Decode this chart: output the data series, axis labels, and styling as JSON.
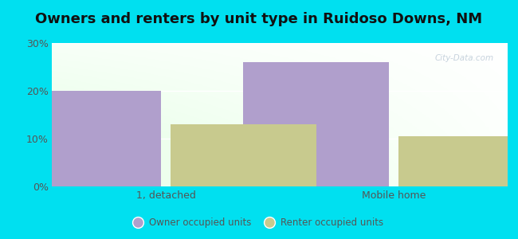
{
  "title": "Owners and renters by unit type in Ruidoso Downs, NM",
  "categories": [
    "1, detached",
    "Mobile home"
  ],
  "owner_values": [
    20.0,
    26.0
  ],
  "renter_values": [
    13.0,
    10.5
  ],
  "owner_color": "#b09fcc",
  "renter_color": "#c8ca8e",
  "owner_label": "Owner occupied units",
  "renter_label": "Renter occupied units",
  "ylim": [
    0,
    30
  ],
  "yticks": [
    0,
    10,
    20,
    30
  ],
  "ytick_labels": [
    "0%",
    "10%",
    "20%",
    "30%"
  ],
  "background_color": "#00e0f0",
  "title_fontsize": 13,
  "bar_width": 0.32,
  "x_positions": [
    0.25,
    0.75
  ],
  "xlim": [
    0,
    1.0
  ]
}
